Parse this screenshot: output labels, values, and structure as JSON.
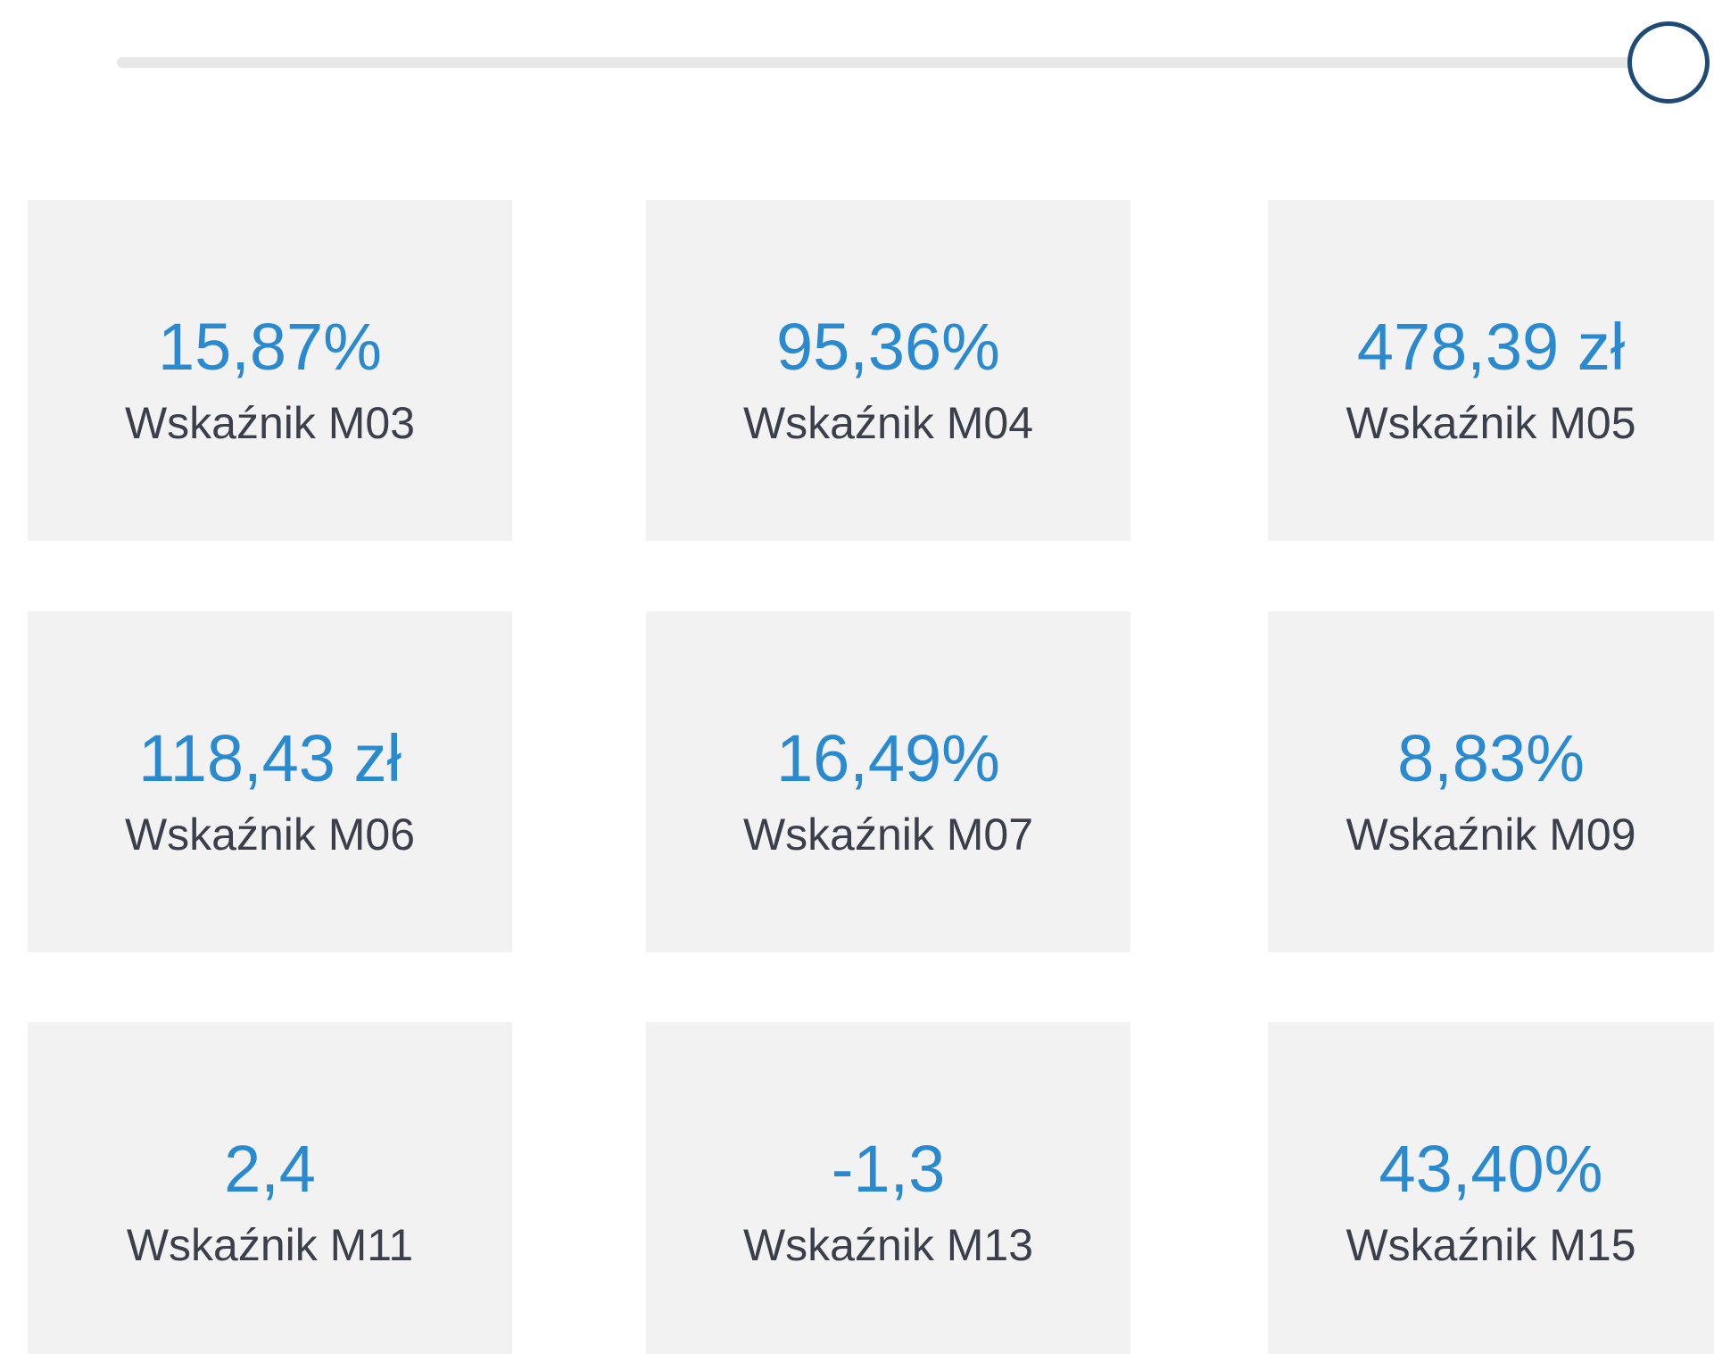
{
  "cards": [
    {
      "value": "15,87%",
      "label": "Wskaźnik M03"
    },
    {
      "value": "95,36%",
      "label": "Wskaźnik M04"
    },
    {
      "value": "478,39 zł",
      "label": "Wskaźnik M05"
    },
    {
      "value": "118,43 zł",
      "label": "Wskaźnik M06"
    },
    {
      "value": "16,49%",
      "label": "Wskaźnik M07"
    },
    {
      "value": "8,83%",
      "label": "Wskaźnik M09"
    },
    {
      "value": "2,4",
      "label": "Wskaźnik M11"
    },
    {
      "value": "-1,3",
      "label": "Wskaźnik M13"
    },
    {
      "value": "43,40%",
      "label": "Wskaźnik M15"
    }
  ]
}
